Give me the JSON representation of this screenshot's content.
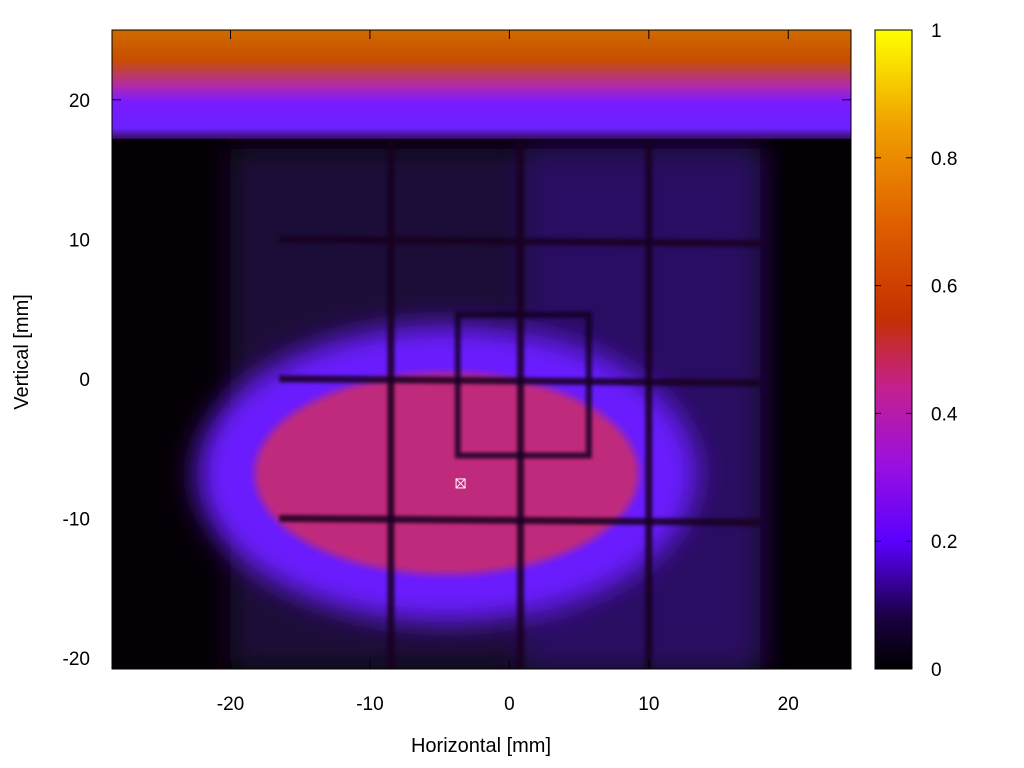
{
  "chart_data": {
    "type": "heatmap",
    "title": "",
    "xlabel": "Horizontal [mm]",
    "ylabel": "Vertical [mm]",
    "xlim": [
      -28.5,
      24.5
    ],
    "ylim": [
      -20.8,
      25
    ],
    "x_ticks": [
      -20,
      -10,
      0,
      10,
      20
    ],
    "x_tick_labels": [
      "-20",
      "-10",
      "0",
      "10",
      "20"
    ],
    "y_ticks": [
      -20,
      -10,
      0,
      10,
      20
    ],
    "y_tick_labels": [
      "-20",
      "-10",
      "0",
      "10",
      "20"
    ],
    "colorbar": {
      "range": [
        0,
        1
      ],
      "ticks": [
        0,
        0.2,
        0.4,
        0.6,
        0.8,
        1
      ],
      "tick_labels": [
        "0",
        "0.2",
        "0.4",
        "0.6",
        "0.8",
        "1"
      ],
      "palette": "black-blue-purple-red-orange-yellow"
    },
    "grid": false,
    "features": {
      "top_band": {
        "y_from": 17.2,
        "y_to": 25,
        "intensity_top": 0.65,
        "intensity_bottom": 0.28
      },
      "background_panel": {
        "x_from": -20,
        "x_to": 18,
        "y_from": -20.8,
        "y_to": 16.5,
        "intensity": 0.1
      },
      "hot_spot": {
        "x_center": -4.5,
        "y_center": -6.8,
        "x_radius": 16,
        "y_radius": 8.2,
        "peak_intensity": 0.45
      },
      "wire_grid_x": [
        -8.5,
        0.8,
        10
      ],
      "wire_grid_y": [
        10,
        0,
        -10
      ],
      "inner_square": {
        "x_from": -3.7,
        "x_to": 5.7,
        "y_from": -5.5,
        "y_to": 4.6
      }
    },
    "marker": {
      "x": -3.5,
      "y": -7.5,
      "symbol": "square-cross"
    }
  },
  "colors": {
    "axis": "#000000",
    "background": "#ffffff"
  }
}
